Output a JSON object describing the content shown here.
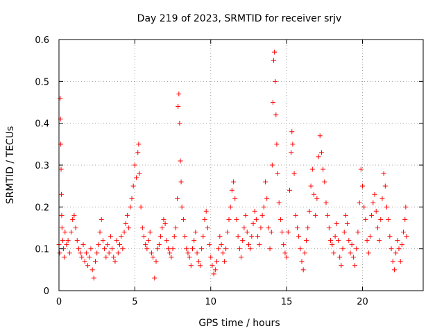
{
  "chart_data": {
    "type": "scatter",
    "title": "Day 219 of 2023, SRMTID for receiver srjv",
    "xlabel": "GPS time / hours",
    "ylabel": "SRMTID / TECUs",
    "xlim": [
      0,
      24.0
    ],
    "ylim": [
      0,
      0.6
    ],
    "x_ticks": [
      0,
      5,
      10,
      15,
      20
    ],
    "x_tick_labels": [
      "0",
      "5",
      "10",
      "15",
      "20"
    ],
    "y_ticks": [
      0,
      0.1,
      0.2,
      0.3,
      0.4,
      0.5,
      0.6
    ],
    "y_tick_labels": [
      "0",
      "0.1",
      "0.2",
      "0.3",
      "0.4",
      "0.5",
      "0.6"
    ],
    "grid": true,
    "marker": "+",
    "color": "#ff0000",
    "series": [
      {
        "name": "SRMTID",
        "points": [
          [
            0.0,
            0.11
          ],
          [
            0.05,
            0.09
          ],
          [
            0.08,
            0.46
          ],
          [
            0.1,
            0.41
          ],
          [
            0.12,
            0.35
          ],
          [
            0.14,
            0.29
          ],
          [
            0.16,
            0.23
          ],
          [
            0.18,
            0.18
          ],
          [
            0.2,
            0.15
          ],
          [
            0.25,
            0.12
          ],
          [
            0.3,
            0.1
          ],
          [
            0.35,
            0.08
          ],
          [
            0.4,
            0.14
          ],
          [
            0.5,
            0.11
          ],
          [
            0.6,
            0.12
          ],
          [
            0.7,
            0.09
          ],
          [
            0.8,
            0.14
          ],
          [
            0.9,
            0.17
          ],
          [
            1.0,
            0.18
          ],
          [
            1.1,
            0.15
          ],
          [
            1.2,
            0.12
          ],
          [
            1.3,
            0.1
          ],
          [
            1.4,
            0.09
          ],
          [
            1.5,
            0.08
          ],
          [
            1.6,
            0.11
          ],
          [
            1.7,
            0.07
          ],
          [
            1.8,
            0.09
          ],
          [
            1.9,
            0.06
          ],
          [
            2.0,
            0.08
          ],
          [
            2.1,
            0.1
          ],
          [
            2.2,
            0.05
          ],
          [
            2.3,
            0.03
          ],
          [
            2.4,
            0.07
          ],
          [
            2.5,
            0.09
          ],
          [
            2.6,
            0.11
          ],
          [
            2.7,
            0.14
          ],
          [
            2.8,
            0.17
          ],
          [
            2.9,
            0.12
          ],
          [
            3.0,
            0.1
          ],
          [
            3.1,
            0.08
          ],
          [
            3.2,
            0.11
          ],
          [
            3.3,
            0.09
          ],
          [
            3.4,
            0.13
          ],
          [
            3.5,
            0.1
          ],
          [
            3.6,
            0.08
          ],
          [
            3.7,
            0.07
          ],
          [
            3.8,
            0.12
          ],
          [
            3.9,
            0.09
          ],
          [
            4.0,
            0.11
          ],
          [
            4.1,
            0.13
          ],
          [
            4.2,
            0.1
          ],
          [
            4.3,
            0.14
          ],
          [
            4.4,
            0.16
          ],
          [
            4.5,
            0.18
          ],
          [
            4.6,
            0.15
          ],
          [
            4.7,
            0.2
          ],
          [
            4.8,
            0.22
          ],
          [
            4.9,
            0.25
          ],
          [
            5.0,
            0.3
          ],
          [
            5.1,
            0.27
          ],
          [
            5.2,
            0.33
          ],
          [
            5.25,
            0.35
          ],
          [
            5.3,
            0.28
          ],
          [
            5.4,
            0.2
          ],
          [
            5.5,
            0.15
          ],
          [
            5.6,
            0.13
          ],
          [
            5.7,
            0.11
          ],
          [
            5.8,
            0.1
          ],
          [
            5.9,
            0.12
          ],
          [
            6.0,
            0.14
          ],
          [
            6.1,
            0.09
          ],
          [
            6.2,
            0.08
          ],
          [
            6.3,
            0.03
          ],
          [
            6.4,
            0.07
          ],
          [
            6.5,
            0.1
          ],
          [
            6.6,
            0.11
          ],
          [
            6.7,
            0.13
          ],
          [
            6.8,
            0.15
          ],
          [
            6.9,
            0.17
          ],
          [
            7.0,
            0.16
          ],
          [
            7.1,
            0.12
          ],
          [
            7.2,
            0.1
          ],
          [
            7.3,
            0.09
          ],
          [
            7.4,
            0.08
          ],
          [
            7.5,
            0.1
          ],
          [
            7.6,
            0.13
          ],
          [
            7.7,
            0.15
          ],
          [
            7.8,
            0.22
          ],
          [
            7.85,
            0.44
          ],
          [
            7.9,
            0.47
          ],
          [
            7.95,
            0.4
          ],
          [
            8.0,
            0.31
          ],
          [
            8.05,
            0.26
          ],
          [
            8.1,
            0.2
          ],
          [
            8.2,
            0.17
          ],
          [
            8.3,
            0.13
          ],
          [
            8.4,
            0.1
          ],
          [
            8.5,
            0.09
          ],
          [
            8.6,
            0.08
          ],
          [
            8.7,
            0.06
          ],
          [
            8.8,
            0.1
          ],
          [
            8.9,
            0.12
          ],
          [
            9.0,
            0.14
          ],
          [
            9.1,
            0.09
          ],
          [
            9.2,
            0.07
          ],
          [
            9.3,
            0.06
          ],
          [
            9.4,
            0.1
          ],
          [
            9.5,
            0.13
          ],
          [
            9.6,
            0.17
          ],
          [
            9.7,
            0.19
          ],
          [
            9.8,
            0.15
          ],
          [
            9.9,
            0.11
          ],
          [
            10.0,
            0.08
          ],
          [
            10.1,
            0.06
          ],
          [
            10.2,
            0.04
          ],
          [
            10.3,
            0.05
          ],
          [
            10.4,
            0.07
          ],
          [
            10.5,
            0.1
          ],
          [
            10.6,
            0.13
          ],
          [
            10.7,
            0.11
          ],
          [
            10.8,
            0.09
          ],
          [
            10.9,
            0.07
          ],
          [
            11.0,
            0.1
          ],
          [
            11.1,
            0.14
          ],
          [
            11.2,
            0.17
          ],
          [
            11.3,
            0.2
          ],
          [
            11.4,
            0.24
          ],
          [
            11.5,
            0.26
          ],
          [
            11.6,
            0.22
          ],
          [
            11.7,
            0.17
          ],
          [
            11.8,
            0.13
          ],
          [
            11.9,
            0.1
          ],
          [
            12.0,
            0.08
          ],
          [
            12.1,
            0.12
          ],
          [
            12.2,
            0.15
          ],
          [
            12.3,
            0.18
          ],
          [
            12.4,
            0.14
          ],
          [
            12.5,
            0.11
          ],
          [
            12.6,
            0.1
          ],
          [
            12.7,
            0.13
          ],
          [
            12.8,
            0.16
          ],
          [
            12.9,
            0.19
          ],
          [
            13.0,
            0.17
          ],
          [
            13.1,
            0.13
          ],
          [
            13.2,
            0.11
          ],
          [
            13.3,
            0.15
          ],
          [
            13.4,
            0.18
          ],
          [
            13.5,
            0.2
          ],
          [
            13.6,
            0.26
          ],
          [
            13.7,
            0.22
          ],
          [
            13.8,
            0.15
          ],
          [
            13.9,
            0.1
          ],
          [
            14.0,
            0.14
          ],
          [
            14.05,
            0.3
          ],
          [
            14.1,
            0.45
          ],
          [
            14.15,
            0.55
          ],
          [
            14.2,
            0.57
          ],
          [
            14.25,
            0.5
          ],
          [
            14.3,
            0.42
          ],
          [
            14.35,
            0.35
          ],
          [
            14.4,
            0.28
          ],
          [
            14.5,
            0.21
          ],
          [
            14.6,
            0.17
          ],
          [
            14.7,
            0.14
          ],
          [
            14.8,
            0.11
          ],
          [
            14.9,
            0.09
          ],
          [
            15.0,
            0.08
          ],
          [
            15.1,
            0.14
          ],
          [
            15.2,
            0.24
          ],
          [
            15.3,
            0.33
          ],
          [
            15.35,
            0.38
          ],
          [
            15.4,
            0.35
          ],
          [
            15.5,
            0.28
          ],
          [
            15.6,
            0.18
          ],
          [
            15.7,
            0.15
          ],
          [
            15.8,
            0.13
          ],
          [
            15.9,
            0.1
          ],
          [
            16.0,
            0.07
          ],
          [
            16.1,
            0.05
          ],
          [
            16.2,
            0.09
          ],
          [
            16.3,
            0.12
          ],
          [
            16.4,
            0.15
          ],
          [
            16.5,
            0.19
          ],
          [
            16.6,
            0.25
          ],
          [
            16.7,
            0.29
          ],
          [
            16.8,
            0.23
          ],
          [
            16.9,
            0.18
          ],
          [
            17.0,
            0.22
          ],
          [
            17.1,
            0.32
          ],
          [
            17.2,
            0.37
          ],
          [
            17.3,
            0.33
          ],
          [
            17.4,
            0.29
          ],
          [
            17.5,
            0.26
          ],
          [
            17.6,
            0.21
          ],
          [
            17.7,
            0.18
          ],
          [
            17.8,
            0.15
          ],
          [
            17.9,
            0.12
          ],
          [
            18.0,
            0.11
          ],
          [
            18.1,
            0.09
          ],
          [
            18.2,
            0.13
          ],
          [
            18.3,
            0.16
          ],
          [
            18.4,
            0.12
          ],
          [
            18.5,
            0.08
          ],
          [
            18.6,
            0.06
          ],
          [
            18.7,
            0.1
          ],
          [
            18.8,
            0.14
          ],
          [
            18.9,
            0.18
          ],
          [
            19.0,
            0.16
          ],
          [
            19.1,
            0.12
          ],
          [
            19.2,
            0.09
          ],
          [
            19.3,
            0.11
          ],
          [
            19.4,
            0.08
          ],
          [
            19.5,
            0.06
          ],
          [
            19.6,
            0.1
          ],
          [
            19.7,
            0.14
          ],
          [
            19.8,
            0.21
          ],
          [
            19.9,
            0.29
          ],
          [
            20.0,
            0.25
          ],
          [
            20.1,
            0.2
          ],
          [
            20.2,
            0.17
          ],
          [
            20.3,
            0.12
          ],
          [
            20.4,
            0.09
          ],
          [
            20.5,
            0.13
          ],
          [
            20.6,
            0.18
          ],
          [
            20.7,
            0.21
          ],
          [
            20.8,
            0.23
          ],
          [
            20.9,
            0.19
          ],
          [
            21.0,
            0.15
          ],
          [
            21.1,
            0.12
          ],
          [
            21.2,
            0.17
          ],
          [
            21.3,
            0.22
          ],
          [
            21.4,
            0.28
          ],
          [
            21.5,
            0.25
          ],
          [
            21.6,
            0.2
          ],
          [
            21.7,
            0.17
          ],
          [
            21.8,
            0.13
          ],
          [
            21.9,
            0.1
          ],
          [
            22.0,
            0.07
          ],
          [
            22.1,
            0.05
          ],
          [
            22.2,
            0.09
          ],
          [
            22.3,
            0.12
          ],
          [
            22.4,
            0.1
          ],
          [
            22.5,
            0.07
          ],
          [
            22.6,
            0.11
          ],
          [
            22.7,
            0.14
          ],
          [
            22.8,
            0.17
          ],
          [
            22.85,
            0.2
          ],
          [
            22.9,
            0.13
          ]
        ]
      }
    ]
  }
}
